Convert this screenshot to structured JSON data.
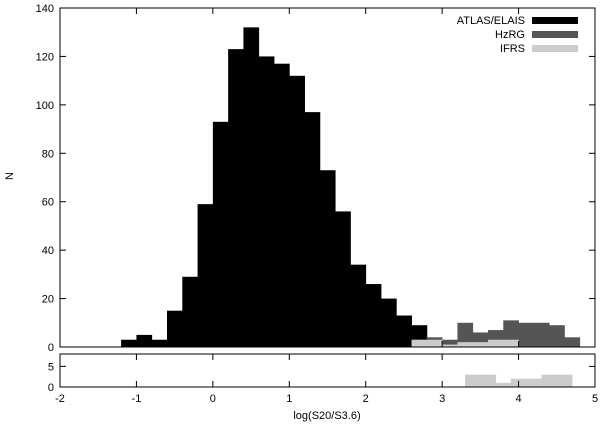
{
  "chart_data": [
    {
      "type": "bar",
      "panel": "main",
      "xlabel": "log(S20/S3.6)",
      "ylabel": "N",
      "xlim": [
        -2,
        5
      ],
      "ylim": [
        0,
        140
      ],
      "x_ticks": [
        "-2",
        "-1",
        "0",
        "1",
        "2",
        "3",
        "4",
        "5"
      ],
      "y_ticks": [
        "0",
        "20",
        "40",
        "60",
        "80",
        "100",
        "120",
        "140"
      ],
      "bin_width": 0.2,
      "legend_position": "top-right",
      "series": [
        {
          "name": "ATLAS/ELAIS",
          "color": "#000000",
          "bin_starts": [
            -1.2,
            -1.0,
            -0.8,
            -0.6,
            -0.4,
            -0.2,
            0.0,
            0.2,
            0.4,
            0.6,
            0.8,
            1.0,
            1.2,
            1.4,
            1.6,
            1.8,
            2.0,
            2.2,
            2.4,
            2.6
          ],
          "values": [
            3,
            5,
            3,
            15,
            29,
            59,
            93,
            123,
            132,
            120,
            117,
            112,
            97,
            73,
            56,
            34,
            26,
            20,
            13,
            9
          ]
        },
        {
          "name": "HzRG",
          "color": "#555555",
          "bin_starts": [
            2.6,
            2.8,
            3.0,
            3.2,
            3.4,
            3.6,
            3.8,
            4.0,
            4.2,
            4.4,
            4.6
          ],
          "values": [
            3,
            4,
            3,
            10,
            6,
            7,
            11,
            10,
            10,
            9,
            4
          ]
        },
        {
          "name": "IFRS",
          "color": "#cccccc",
          "bin_starts": [
            2.6,
            2.8,
            3.0,
            3.2,
            3.4,
            3.6,
            3.8
          ],
          "values": [
            3,
            3,
            1,
            2,
            2,
            3,
            3
          ]
        }
      ]
    },
    {
      "type": "bar",
      "panel": "lower",
      "xlim": [
        -2,
        5
      ],
      "ylim": [
        0,
        8
      ],
      "y_ticks": [
        "0",
        "5"
      ],
      "bin_width": 0.2,
      "series": [
        {
          "name": "IFRS",
          "color": "#cccccc",
          "bin_starts": [
            3.3,
            3.5,
            3.7,
            3.9,
            4.1,
            4.3,
            4.5
          ],
          "values": [
            3,
            3,
            1,
            2,
            2,
            3,
            3
          ]
        }
      ]
    }
  ]
}
